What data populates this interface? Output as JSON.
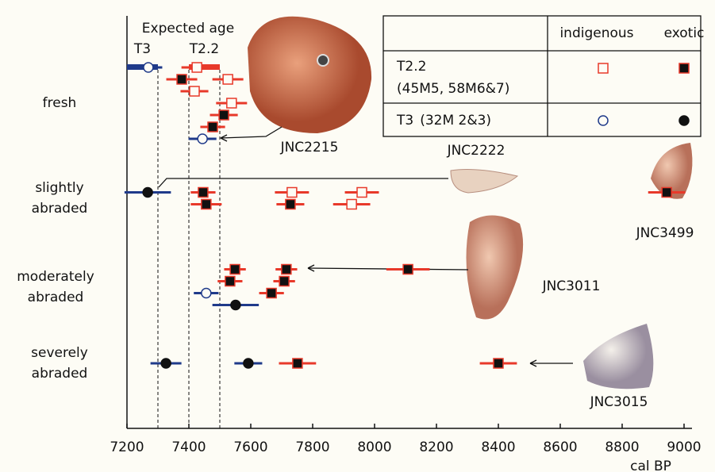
{
  "chart_data": {
    "type": "interval",
    "xlabel": "cal BP",
    "xlim": [
      7200,
      9000
    ],
    "xticks": [
      7200,
      7400,
      7600,
      7800,
      8000,
      8200,
      8400,
      8600,
      8800,
      9000
    ],
    "categories": [
      "fresh",
      "slightly abraded",
      "moderately abraded",
      "severely abraded"
    ],
    "expected_title": "Expected age",
    "expected_ages": [
      {
        "name": "T3",
        "range": [
          7200,
          7300
        ],
        "color": "#1f3a8a"
      },
      {
        "name": "T2.2",
        "range": [
          7400,
          7500
        ],
        "color": "#e8392a"
      }
    ],
    "origins": [
      "indigenous",
      "exotic"
    ],
    "groups": [
      {
        "name": "T2.2",
        "detail": "(45M5, 58M6&7)",
        "marker": "square",
        "color": "#e8392a",
        "series": [
          {
            "fill": "none",
            "points": [
              {
                "category": "fresh",
                "value": 7426,
                "error": 50
              },
              {
                "category": "fresh",
                "value": 7526,
                "error": 50
              },
              {
                "category": "fresh",
                "value": 7418,
                "error": 45
              },
              {
                "category": "fresh",
                "value": 7538,
                "error": 50
              },
              {
                "category": "slightly abraded",
                "value": 7733,
                "error": 55
              },
              {
                "category": "slightly abraded",
                "value": 7959,
                "error": 55
              },
              {
                "category": "slightly abraded",
                "value": 7926,
                "error": 60
              }
            ]
          },
          {
            "fill": "#111111",
            "points": [
              {
                "category": "fresh",
                "value": 7377,
                "error": 50
              },
              {
                "category": "fresh",
                "value": 7513,
                "error": 45
              },
              {
                "category": "fresh",
                "value": 7477,
                "error": 40
              },
              {
                "category": "slightly abraded",
                "value": 7446,
                "error": 40
              },
              {
                "category": "slightly abraded",
                "value": 7456,
                "error": 50
              },
              {
                "category": "slightly abraded",
                "value": 7728,
                "error": 45
              },
              {
                "category": "slightly abraded",
                "value": 8944,
                "error": 60
              },
              {
                "category": "moderately abraded",
                "value": 7715,
                "error": 35
              },
              {
                "category": "moderately abraded",
                "value": 7549,
                "error": 35
              },
              {
                "category": "moderately abraded",
                "value": 7708,
                "error": 35
              },
              {
                "category": "moderately abraded",
                "value": 7533,
                "error": 40
              },
              {
                "category": "moderately abraded",
                "value": 7667,
                "error": 40
              },
              {
                "category": "moderately abraded",
                "value": 8108,
                "error": 70
              },
              {
                "category": "severely abraded",
                "value": 7751,
                "error": 60
              },
              {
                "category": "severely abraded",
                "value": 8400,
                "error": 60
              }
            ]
          }
        ]
      },
      {
        "name": "T3",
        "detail": "(32M 2&3)",
        "marker": "circle",
        "color": "#1f3a8a",
        "series": [
          {
            "fill": "none",
            "points": [
              {
                "category": "fresh",
                "value": 7269,
                "error": 45
              },
              {
                "category": "fresh",
                "value": 7444,
                "error": 45
              },
              {
                "category": "moderately abraded",
                "value": 7456,
                "error": 40
              }
            ]
          },
          {
            "fill": "#111111",
            "points": [
              {
                "category": "slightly abraded",
                "value": 7267,
                "error": 75
              },
              {
                "category": "moderately abraded",
                "value": 7551,
                "error": 75
              },
              {
                "category": "severely abraded",
                "value": 7326,
                "error": 50
              },
              {
                "category": "severely abraded",
                "value": 7592,
                "error": 45
              }
            ]
          }
        ]
      }
    ],
    "specimens": [
      "JNC2215",
      "JNC2222",
      "JNC3499",
      "JNC3011",
      "JNC3015"
    ]
  }
}
